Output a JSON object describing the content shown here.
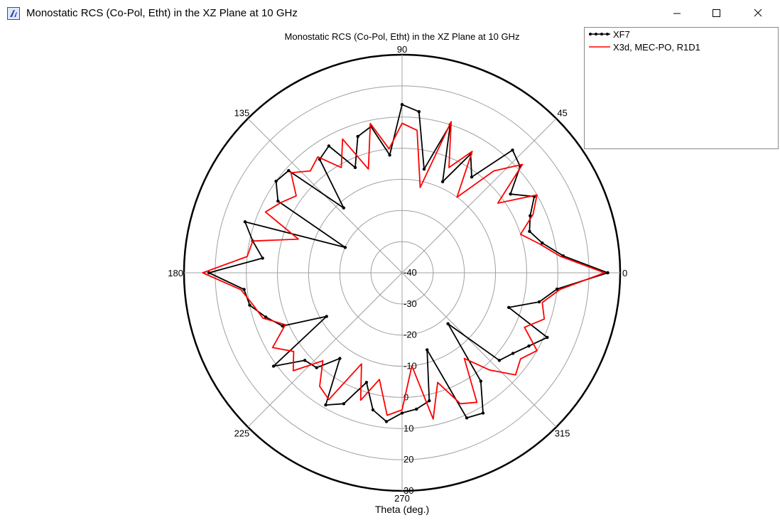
{
  "window": {
    "title": "Monostatic RCS (Co-Pol, Etht) in the XZ Plane at 10 GHz",
    "app_icon": "app-logo-icon",
    "controls": {
      "minimize_icon": "minimize-icon",
      "maximize_icon": "maximize-icon",
      "close_icon": "close-icon"
    }
  },
  "chart_data": {
    "type": "line",
    "projection": "polar",
    "title": "Monostatic RCS (Co-Pol, Etht) in the XZ Plane at 10 GHz",
    "xlabel": "Theta (deg.)",
    "ylabel": "",
    "angle_unit": "deg",
    "angle_ticks": [
      0,
      45,
      90,
      135,
      180,
      225,
      270,
      315
    ],
    "radial_ticks": [
      -40,
      -30,
      -20,
      -10,
      0,
      10,
      20,
      30
    ],
    "radial_tick_labels": [
      "-40",
      "-30",
      "-20",
      "-10",
      "0",
      "10",
      "20",
      "30"
    ],
    "rlim": [
      -40,
      30
    ],
    "grid": true,
    "legend_position": "top-right",
    "colors": {
      "grid": "#a0a0a0",
      "outer_circle": "#000000",
      "series_xf7": "#000000",
      "series_x3d": "#ff0000"
    },
    "series": [
      {
        "name": "XF7",
        "color": "#000000",
        "marker": "circle",
        "theta": [
          0,
          6,
          12,
          18,
          24,
          30,
          36,
          42,
          48,
          54,
          60,
          66,
          72,
          78,
          84,
          90,
          96,
          102,
          108,
          114,
          120,
          126,
          132,
          138,
          144,
          150,
          156,
          162,
          168,
          174,
          180,
          186,
          192,
          198,
          204,
          210,
          216,
          222,
          228,
          234,
          240,
          246,
          252,
          258,
          264,
          270,
          276,
          282,
          288,
          294,
          300,
          306,
          312,
          318,
          324,
          330,
          336,
          342,
          348,
          354,
          360
        ],
        "values": [
          26.0,
          12.0,
          6.0,
          3.0,
          5.0,
          9.0,
          3.0,
          11.0,
          13.0,
          -2.0,
          4.0,
          -8.0,
          10.0,
          -6.0,
          12.0,
          14.0,
          -2.0,
          8.0,
          6.0,
          -3.0,
          7.0,
          5.0,
          -12.0,
          9.0,
          10.0,
          6.0,
          -20.0,
          13.0,
          9.0,
          5.0,
          22.0,
          11.0,
          10.0,
          6.0,
          2.0,
          -12.0,
          11.0,
          2.0,
          1.0,
          -6.0,
          9.0,
          6.0,
          -3.0,
          5.0,
          8.0,
          5.0,
          4.0,
          2.0,
          -14.0,
          11.0,
          12.0,
          3.0,
          -18.0,
          2.0,
          4.0,
          7.0,
          11.0,
          -4.0,
          5.0,
          10.0,
          26.0
        ]
      },
      {
        "name": "X3d, MEC-PO, R1D1",
        "color": "#ff0000",
        "marker": "none",
        "theta": [
          0,
          6,
          12,
          18,
          24,
          30,
          36,
          42,
          48,
          54,
          60,
          66,
          72,
          78,
          84,
          90,
          96,
          102,
          108,
          114,
          120,
          126,
          132,
          138,
          144,
          150,
          156,
          162,
          168,
          174,
          180,
          186,
          192,
          198,
          204,
          210,
          216,
          222,
          228,
          234,
          240,
          246,
          252,
          258,
          264,
          270,
          276,
          282,
          288,
          294,
          300,
          306,
          312,
          318,
          324,
          330,
          336,
          342,
          348,
          354,
          360
        ],
        "values": [
          25.0,
          11.0,
          5.0,
          0.0,
          6.0,
          10.0,
          -2.0,
          12.0,
          4.0,
          -10.0,
          5.0,
          -3.0,
          11.0,
          -12.0,
          6.0,
          8.0,
          0.0,
          9.0,
          -5.0,
          7.0,
          -1.0,
          6.0,
          4.0,
          8.0,
          2.0,
          5.0,
          8.0,
          -5.0,
          9.0,
          10.0,
          24.0,
          12.0,
          9.0,
          7.0,
          1.0,
          8.0,
          3.0,
          7.0,
          -2.0,
          5.0,
          7.0,
          -8.0,
          3.0,
          -5.0,
          6.0,
          4.0,
          -10.0,
          8.0,
          -3.0,
          6.0,
          8.0,
          -6.0,
          2.0,
          9.0,
          7.0,
          10.0,
          3.0,
          8.0,
          6.0,
          11.0,
          25.0
        ]
      }
    ]
  }
}
